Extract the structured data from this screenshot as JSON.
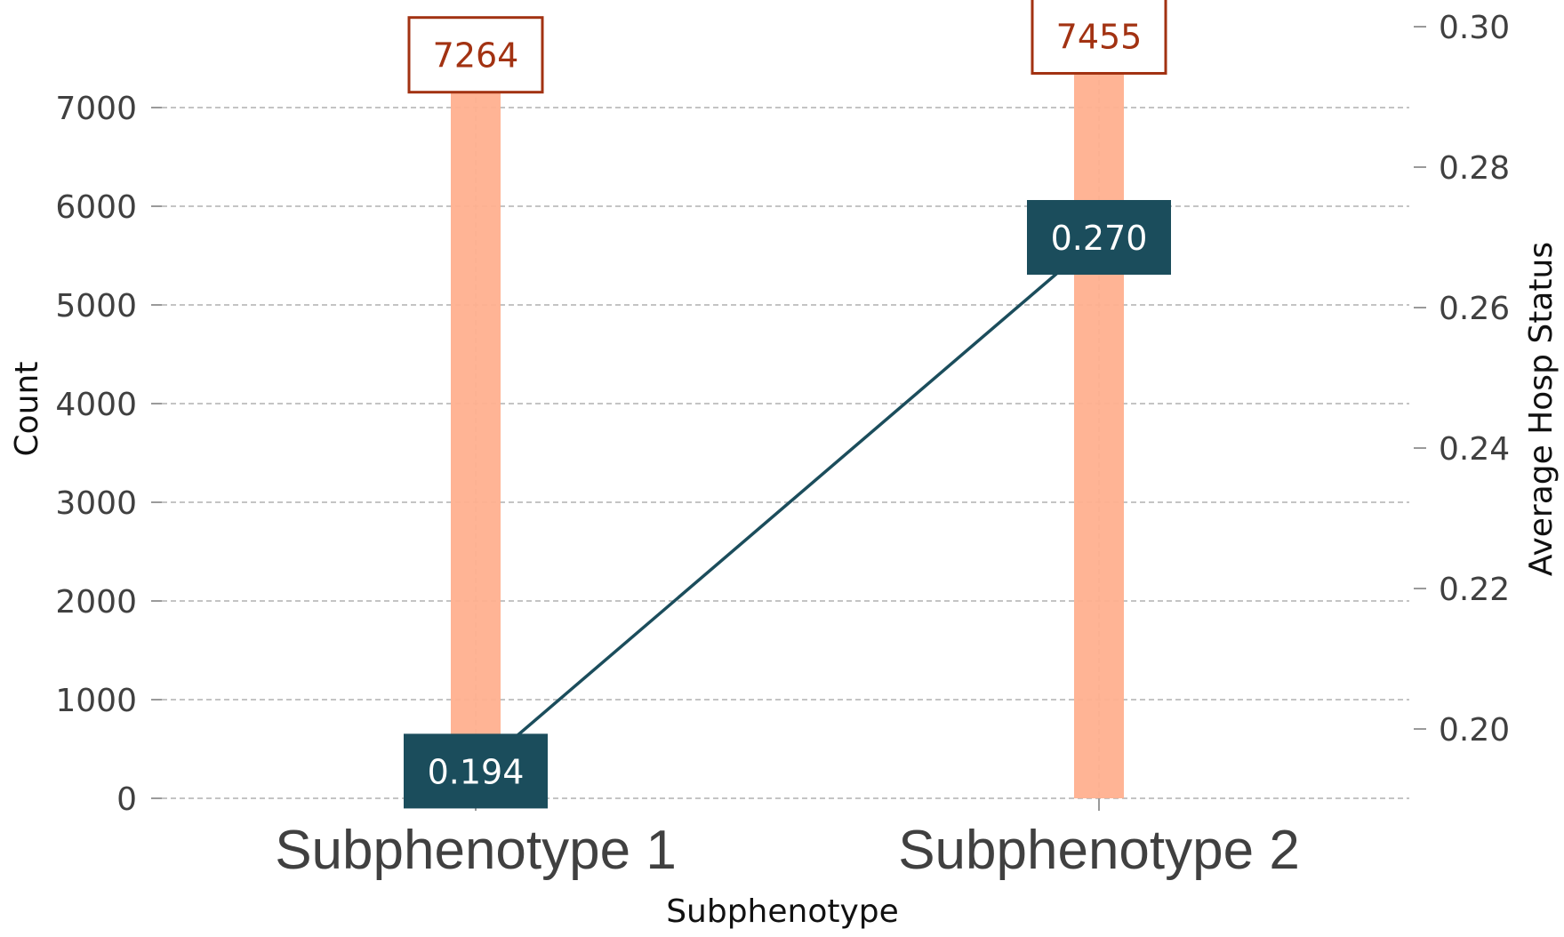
{
  "chart_data": {
    "type": "bar",
    "categories": [
      "Subphenotype 1",
      "Subphenotype 2"
    ],
    "series": [
      {
        "values": [
          7264,
          7455
        ],
        "axis": "left",
        "mark": "bar"
      },
      {
        "values": [
          0.194,
          0.27
        ],
        "axis": "right",
        "mark": "line"
      }
    ],
    "bar_labels": [
      "7264",
      "7455"
    ],
    "line_labels": [
      "0.194",
      "0.270"
    ],
    "xlabel": "Subphenotype",
    "ylabel_left": "Count",
    "ylabel_right": "Average Hosp Status",
    "ylim_left": [
      0,
      7800
    ],
    "ylim_right": [
      0.19,
      0.3
    ],
    "yticks_left": [
      0,
      1000,
      2000,
      3000,
      4000,
      5000,
      6000,
      7000
    ],
    "yticks_right": [
      0.2,
      0.22,
      0.24,
      0.26,
      0.28,
      0.3
    ],
    "ytick_labels_left": [
      "0",
      "1000",
      "2000",
      "3000",
      "4000",
      "5000",
      "6000",
      "7000"
    ],
    "ytick_labels_right": [
      "0.20",
      "0.22",
      "0.24",
      "0.26",
      "0.28",
      "0.30"
    ],
    "grid": true,
    "colors": {
      "bar": "#ffb08f",
      "line": "#1b4d5c",
      "count_label_border": "#a23212",
      "count_label_text": "#a23212",
      "avg_label_bg": "#1b4d5c",
      "grid": "#b0b0b0"
    }
  }
}
